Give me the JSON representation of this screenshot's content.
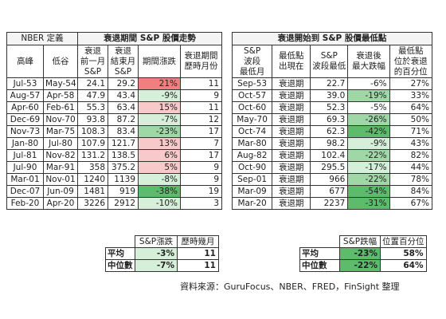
{
  "left": {
    "title_left": "NBER 定義",
    "title_right": "衰退期間 S&P 股價走勢",
    "headers": [
      "高峰",
      "低谷",
      "衰退\n前一月\nS&P",
      "衰退\n結束月\nS&P",
      "期間漲跌",
      "衰退期間\n歷時月份"
    ],
    "rows": [
      {
        "peak": "Jul-53",
        "trough": "May-54",
        "pre": "24.1",
        "end": "29.2",
        "change": "21%",
        "months": "11",
        "tone": "red"
      },
      {
        "peak": "Aug-57",
        "trough": "Apr-58",
        "pre": "47.9",
        "end": "43.4",
        "change": "-9%",
        "months": "9",
        "tone": "pale-green"
      },
      {
        "peak": "Apr-60",
        "trough": "Feb-61",
        "pre": "55.3",
        "end": "63.4",
        "change": "15%",
        "months": "11",
        "tone": "pale-red"
      },
      {
        "peak": "Dec-69",
        "trough": "Nov-70",
        "pre": "93.8",
        "end": "87.2",
        "change": "-7%",
        "months": "12",
        "tone": "pale-green"
      },
      {
        "peak": "Nov-73",
        "trough": "Mar-75",
        "pre": "108.3",
        "end": "83.4",
        "change": "-23%",
        "months": "17",
        "tone": "green"
      },
      {
        "peak": "Jan-80",
        "trough": "Jul-80",
        "pre": "107.9",
        "end": "121.7",
        "change": "13%",
        "months": "7",
        "tone": "pale-red"
      },
      {
        "peak": "Jul-81",
        "trough": "Nov-82",
        "pre": "131.2",
        "end": "138.5",
        "change": "6%",
        "months": "17",
        "tone": "pale-red"
      },
      {
        "peak": "Jul-90",
        "trough": "Mar-91",
        "pre": "358",
        "end": "375.2",
        "change": "5%",
        "months": "9",
        "tone": "pale-red"
      },
      {
        "peak": "Mar-01",
        "trough": "Nov-01",
        "pre": "1240",
        "end": "1139",
        "change": "-8%",
        "months": "9",
        "tone": "pale-green"
      },
      {
        "peak": "Dec-07",
        "trough": "Jun-09",
        "pre": "1481",
        "end": "919",
        "change": "-38%",
        "months": "19",
        "tone": "deep-green"
      },
      {
        "peak": "Feb-20",
        "trough": "Apr-20",
        "pre": "3226",
        "end": "2912",
        "change": "-10%",
        "months": "3",
        "tone": "pale-green"
      }
    ],
    "summary": {
      "headers": [
        "S&P漲跌",
        "歷時幾月"
      ],
      "rows": [
        {
          "label": "平均",
          "change": "-3%",
          "months": "11",
          "tone": "pale-green"
        },
        {
          "label": "中位數",
          "change": "-7%",
          "months": "11",
          "tone": "pale-green"
        }
      ]
    }
  },
  "right": {
    "title": "衰退開始到 S&P 股價最低點",
    "headers": [
      "S&P\n波段\n最低月",
      "最低點\n出現在",
      "S&P\n波段最低",
      "衰退後\n最大跌幅",
      "最低點\n位於衰退\n的百分位"
    ],
    "rows": [
      {
        "month": "Sep-53",
        "where": "衰退期",
        "low": "22.7",
        "drop": "-6%",
        "pct": "27%",
        "tone": ""
      },
      {
        "month": "Oct-57",
        "where": "衰退期",
        "low": "39.0",
        "drop": "-19%",
        "pct": "33%",
        "tone": "green"
      },
      {
        "month": "Oct-60",
        "where": "衰退期",
        "low": "52.3",
        "drop": "-5%",
        "pct": "64%",
        "tone": ""
      },
      {
        "month": "May-70",
        "where": "衰退期",
        "low": "69.3",
        "drop": "-26%",
        "pct": "50%",
        "tone": "green"
      },
      {
        "month": "Oct-74",
        "where": "衰退期",
        "low": "62.3",
        "drop": "-42%",
        "pct": "71%",
        "tone": "deep-green"
      },
      {
        "month": "Mar-80",
        "where": "衰退期",
        "low": "98.2",
        "drop": "-9%",
        "pct": "43%",
        "tone": "pale-green"
      },
      {
        "month": "Aug-82",
        "where": "衰退期",
        "low": "102.4",
        "drop": "-22%",
        "pct": "82%",
        "tone": "green"
      },
      {
        "month": "Oct-90",
        "where": "衰退期",
        "low": "295.5",
        "drop": "-17%",
        "pct": "44%",
        "tone": "pale-green"
      },
      {
        "month": "Sep-01",
        "where": "衰退期",
        "low": "966",
        "drop": "-22%",
        "pct": "78%",
        "tone": "green"
      },
      {
        "month": "Mar-09",
        "where": "衰退期",
        "low": "677",
        "drop": "-54%",
        "pct": "84%",
        "tone": "deep-green"
      },
      {
        "month": "Mar-20",
        "where": "衰退期",
        "low": "2237",
        "drop": "-31%",
        "pct": "67%",
        "tone": "deep-green"
      }
    ],
    "summary": {
      "headers": [
        "S&P跌幅",
        "位置百分位"
      ],
      "rows": [
        {
          "label": "平均",
          "drop": "-23%",
          "pct": "58%",
          "tone": "deep-green"
        },
        {
          "label": "中位數",
          "drop": "-22%",
          "pct": "64%",
          "tone": "deep-green"
        }
      ]
    }
  },
  "source": "資料來源：GuruFocus、NBER、FRED，FinSight 整理"
}
